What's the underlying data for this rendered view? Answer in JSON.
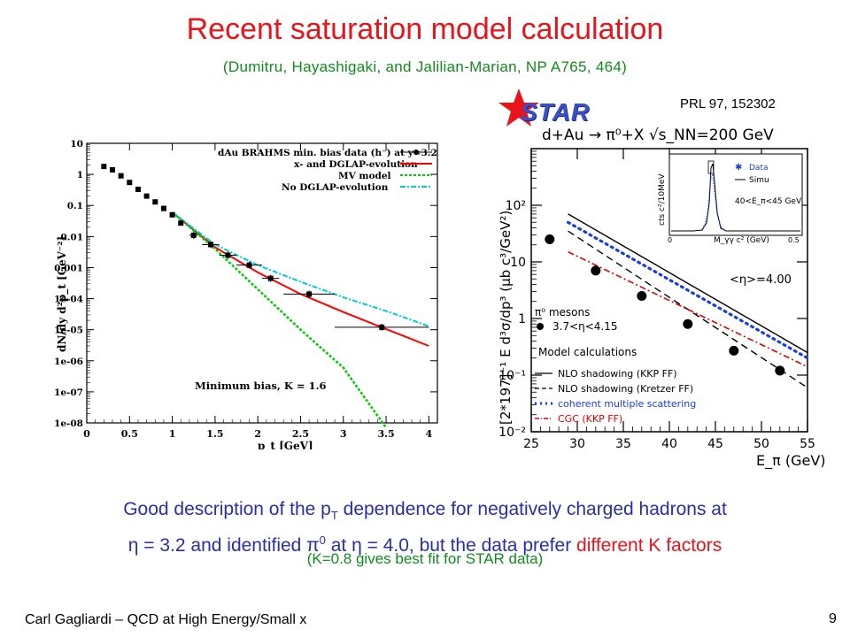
{
  "slide": {
    "title": "Recent saturation model calculation",
    "citation": "(Dumitru, Hayashigaki, and Jalilian-Marian, NP A765, 464)",
    "prl": "PRL 97, 152302",
    "star_logo_text": "STAR",
    "summary_line1": "Good description of the p",
    "summary_line1_sub": "T",
    "summary_line1_rest": " dependence for negatively charged hadrons at",
    "summary_line2_a": "η = 3.2 and identified π",
    "summary_line2_sup": "0",
    "summary_line2_b": " at η = 4.0, but the data prefer ",
    "summary_line2_red": "different K factors",
    "summary_line3": "(K=0.8 gives best fit for STAR data)",
    "footer": "Carl Gagliardi – QCD at High Energy/Small x",
    "page_number": "9"
  },
  "chart_data": [
    {
      "type": "scatter",
      "title": "",
      "xlabel": "p_t [GeV]",
      "ylabel": "dN/dy d²p_t [GeV⁻²]",
      "log_y": true,
      "xlim": [
        0,
        4.1
      ],
      "ylim": [
        1e-08,
        10
      ],
      "x_ticks": [
        "0",
        "0.5",
        "1",
        "1.5",
        "2",
        "2.5",
        "3",
        "3.5",
        "4"
      ],
      "y_ticks": [
        "10",
        "1",
        "0.1",
        "0.01",
        "0.001",
        "1e-04",
        "1e-05",
        "1e-06",
        "1e-07",
        "1e-08"
      ],
      "annotation": "Minimum bias,   K = 1.6",
      "legend": [
        {
          "label": "dAu BRAHMS min. bias data (h⁻) at y=3.2",
          "color": "#000000"
        },
        {
          "label": "x- and DGLAP-evolution",
          "color": "#ff0000"
        },
        {
          "label": "MV model",
          "color": "#00cc00"
        },
        {
          "label": "No DGLAP-evolution",
          "color": "#00cccc"
        }
      ],
      "series": [
        {
          "name": "dAu BRAHMS min. bias data (h⁻) at y=3.2",
          "x": [
            0.2,
            0.3,
            0.4,
            0.5,
            0.6,
            0.7,
            0.8,
            0.9,
            1.0,
            1.1,
            1.25,
            1.45,
            1.65,
            1.9,
            2.15,
            2.6,
            3.45
          ],
          "y": [
            1.8,
            1.4,
            0.9,
            0.55,
            0.33,
            0.2,
            0.13,
            0.08,
            0.05,
            0.027,
            0.011,
            0.0055,
            0.0025,
            0.0012,
            0.00045,
            0.00014,
            1.2e-05
          ],
          "xerr": [
            0,
            0,
            0,
            0,
            0,
            0,
            0,
            0,
            0,
            0,
            0.05,
            0.1,
            0.1,
            0.15,
            0.1,
            0.3,
            0.55
          ]
        },
        {
          "name": "x- and DGLAP-evolution",
          "x": [
            1.0,
            1.5,
            2.0,
            2.5,
            3.0,
            3.5,
            4.0
          ],
          "y": [
            0.06,
            0.0045,
            0.0007,
            0.00014,
            3.7e-05,
            1.05e-05,
            3e-06
          ]
        },
        {
          "name": "MV model",
          "x": [
            1.0,
            1.5,
            2.0,
            2.5,
            3.0,
            3.5
          ],
          "y": [
            0.06,
            0.004,
            0.0002,
            1e-05,
            6e-07,
            7e-09
          ]
        },
        {
          "name": "No DGLAP-evolution",
          "x": [
            1.0,
            1.5,
            2.0,
            2.5,
            3.0,
            3.5,
            4.0
          ],
          "y": [
            0.06,
            0.0055,
            0.0012,
            0.00035,
            0.00011,
            4e-05,
            1.3e-05
          ]
        }
      ]
    },
    {
      "type": "scatter",
      "header": "d+Au → π⁰+X    √s_NN=200 GeV",
      "xlabel": "E_π (GeV)",
      "ylabel": "[2*197]⁻¹ E d³σ/dp³ (μb c³/GeV²)",
      "log_y": true,
      "xlim": [
        25,
        55
      ],
      "ylim": [
        0.01,
        1000
      ],
      "x_ticks": [
        "25",
        "30",
        "35",
        "40",
        "45",
        "50",
        "55"
      ],
      "y_ticks": [
        "10²",
        "10",
        "1",
        "10⁻¹",
        "10⁻²"
      ],
      "eta_label": "<η>=4.00",
      "data_legend": [
        "π⁰ mesons",
        "3.7<η<4.15"
      ],
      "model_header": "Model calculations",
      "models": [
        {
          "label": "NLO shadowing (KKP FF)",
          "style": "solid",
          "color": "#000000"
        },
        {
          "label": "NLO shadowing (Kretzer FF)",
          "style": "dashed",
          "color": "#000000"
        },
        {
          "label": "coherent multiple scattering",
          "style": "dotted",
          "color": "#1a3ee0"
        },
        {
          "label": "CGC (KKP FF)",
          "style": "dashdot",
          "color": "#e00000"
        }
      ],
      "series": [
        {
          "name": "π⁰ mesons",
          "x": [
            27,
            32,
            37,
            42,
            47,
            52
          ],
          "y": [
            25,
            7,
            2.5,
            0.8,
            0.27,
            0.12
          ]
        },
        {
          "name": "NLO shadowing (KKP FF)",
          "x": [
            29,
            55
          ],
          "y": [
            70,
            0.25
          ]
        },
        {
          "name": "NLO shadowing (Kretzer FF)",
          "x": [
            29,
            55
          ],
          "y": [
            35,
            0.06
          ]
        },
        {
          "name": "coherent multiple scattering",
          "x": [
            29,
            55
          ],
          "y": [
            50,
            0.2
          ]
        },
        {
          "name": "CGC (KKP FF)",
          "x": [
            29,
            55
          ],
          "y": [
            15,
            0.14
          ]
        }
      ],
      "inset": {
        "xlabel": "M_γγ c² (GeV)",
        "ylabel": "cts c²/10MeV",
        "x_ticks": [
          "0",
          "0.5"
        ],
        "legend": [
          "Data",
          "Simu"
        ],
        "label": "40<E_π<45 GeV"
      }
    }
  ]
}
